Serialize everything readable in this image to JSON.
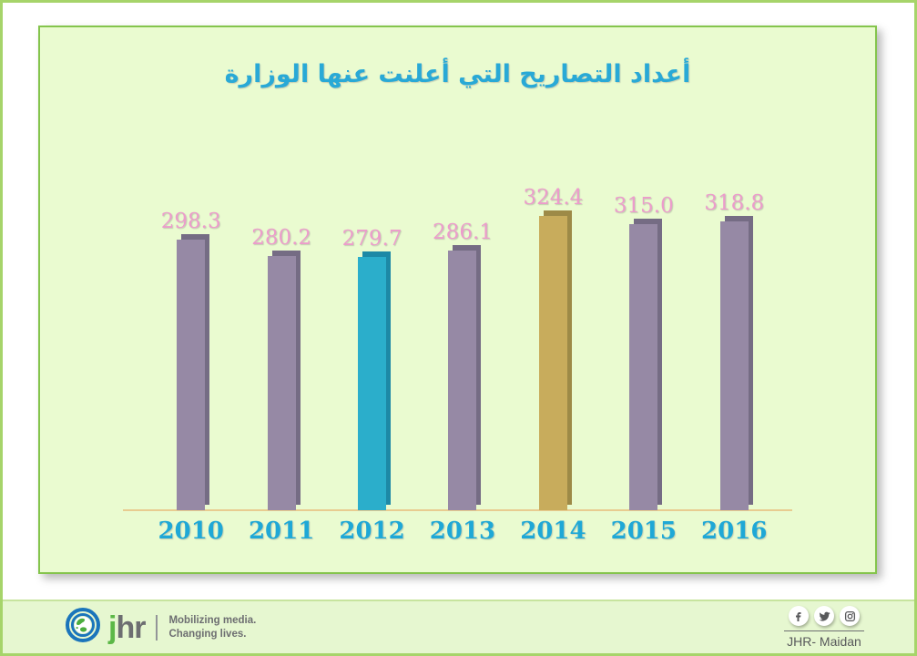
{
  "chart_data": {
    "type": "bar",
    "title": "أعداد التصاريح التي أعلنت عنها الوزارة",
    "categories": [
      "2010",
      "2011",
      "2012",
      "2013",
      "2014",
      "2015",
      "2016"
    ],
    "values": [
      298.3,
      280.2,
      279.7,
      286.1,
      324.4,
      315.0,
      318.8
    ],
    "value_labels": [
      "298.3",
      "280.2",
      "279.7",
      "286.1",
      "324.4",
      "315.0",
      "318.8"
    ],
    "bar_colors": [
      "#9689A5",
      "#9689A5",
      "#2BAECB",
      "#9689A5",
      "#C8AC5C",
      "#9689A5",
      "#9689A5"
    ],
    "bar_side_colors": [
      "#756C84",
      "#756C84",
      "#1D89A6",
      "#756C84",
      "#9D8A47",
      "#756C84",
      "#756C84"
    ],
    "highlighted_categories": [
      "2012",
      "2014"
    ],
    "ylim": [
      0,
      340
    ],
    "grid": false,
    "legend": false,
    "value_label_color": "#EC9CCB",
    "category_label_color": "#1FA8D6",
    "baseline_color": "#E8CC90",
    "title_color": "#29A9D6"
  },
  "panel": {
    "background": "#EAFBD0",
    "border_color": "#84C44C"
  },
  "page": {
    "background": "#FFFFFF",
    "border_color": "#A6D46A"
  },
  "footer": {
    "background": "#E6F7D0",
    "logo": {
      "globe_icon": "globe-icon",
      "j": "j",
      "hr": "hr",
      "tagline_line1": "Mobilizing media.",
      "tagline_line2": "Changing lives."
    },
    "social_icons": [
      {
        "name": "facebook-icon"
      },
      {
        "name": "twitter-icon"
      },
      {
        "name": "instagram-icon"
      }
    ],
    "org_label": "JHR- Maidan"
  }
}
